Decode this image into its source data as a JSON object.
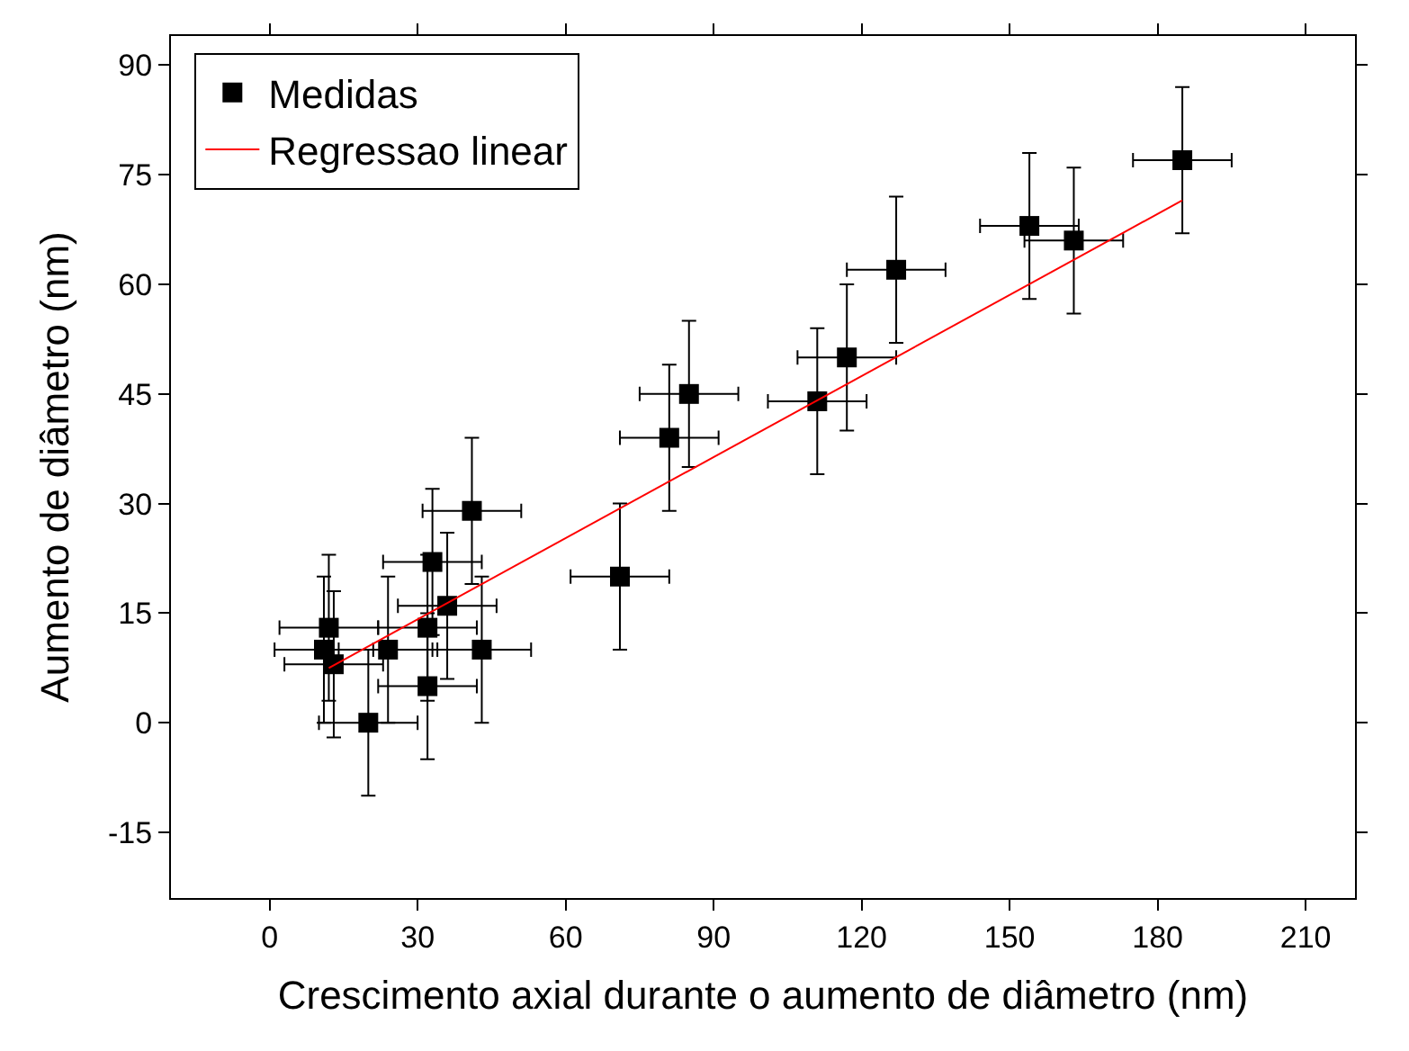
{
  "chart_data": {
    "type": "scatter",
    "xlabel": "Crescimento axial durante o aumento de diâmetro (nm)",
    "ylabel": "Aumento de diâmetro (nm)",
    "xlim": [
      -20,
      220
    ],
    "xticks": [
      0,
      30,
      60,
      90,
      120,
      150,
      180,
      210
    ],
    "ylim": [
      -24,
      94
    ],
    "yticks": [
      -15,
      0,
      15,
      30,
      45,
      60,
      75,
      90
    ],
    "grid": false,
    "legend": "top left",
    "series": [
      {
        "name": "Medidas",
        "color": "#000000",
        "marker": "square",
        "x": [
          11,
          12,
          13,
          20,
          24,
          32,
          32,
          33,
          36,
          41,
          43,
          71,
          81,
          85,
          111,
          117,
          127,
          154,
          163,
          185
        ],
        "values": [
          10,
          13,
          8,
          0,
          10,
          5,
          13,
          22,
          16,
          29,
          10,
          20,
          39,
          45,
          44,
          50,
          62,
          68,
          66,
          77
        ],
        "errors": [
          10,
          10,
          10,
          10,
          10,
          10,
          10,
          10,
          10,
          10,
          10,
          10,
          10,
          10,
          10,
          10,
          10,
          10,
          10,
          10
        ],
        "xerrors": [
          10,
          10,
          10,
          10,
          10,
          10,
          10,
          10,
          10,
          10,
          10,
          10,
          10,
          10,
          10,
          10,
          10,
          10,
          10,
          10
        ]
      },
      {
        "name": "Regressao linear",
        "type": "line",
        "color": "#ff0000",
        "line_style": "solid",
        "x": [
          12,
          185
        ],
        "values": [
          7.5,
          71.5
        ]
      }
    ]
  }
}
